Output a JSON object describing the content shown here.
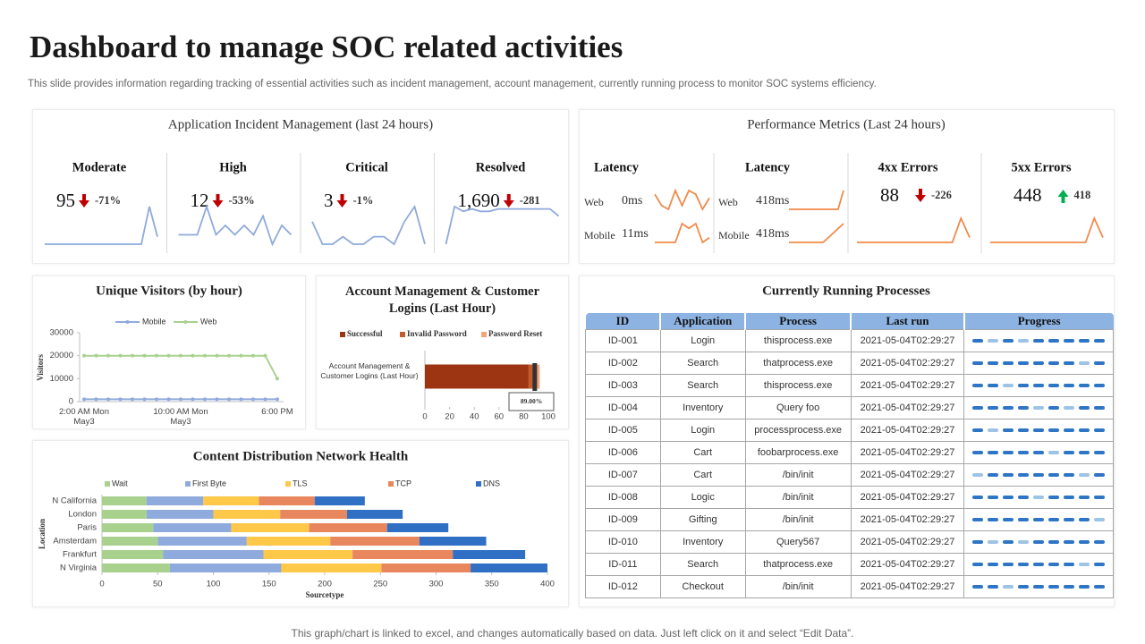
{
  "header": {
    "title": "Dashboard to manage SOC related activities",
    "subtitle": "This slide provides information regarding tracking of essential activities such as incident management, account management, currently running process to monitor SOC systems efficiency."
  },
  "incident_panel": {
    "title": "Application Incident Management (last 24 hours)",
    "kpis": [
      {
        "label": "Moderate",
        "value": 95,
        "change": {
          "value": -71,
          "label": "-71%"
        },
        "trend": "down",
        "sparkline": [
          1,
          1,
          1,
          1,
          1,
          1,
          1,
          1,
          1,
          1,
          1,
          1,
          1,
          6,
          2
        ]
      },
      {
        "label": "High",
        "value": 12,
        "change": {
          "value": -53,
          "label": "-53%"
        },
        "trend": "down",
        "sparkline": [
          2,
          2,
          2,
          5,
          2,
          3,
          2,
          3,
          2,
          4,
          1,
          3,
          2
        ]
      },
      {
        "label": "Critical",
        "value": 3,
        "change": {
          "value": -1,
          "label": "-1%"
        },
        "trend": "down",
        "sparkline": [
          4,
          1,
          1,
          2,
          1,
          1,
          2,
          2,
          1,
          4,
          6,
          1
        ]
      },
      {
        "label": "Resolved",
        "value": {
          "value": 1690,
          "label": "1,690"
        },
        "change": -281,
        "trend": "down",
        "sparkline": [
          0,
          8,
          7,
          7.5,
          7,
          7,
          7.5,
          7.5,
          7.5,
          7.5,
          7.5,
          7.5,
          7.5,
          6
        ]
      }
    ]
  },
  "performance_panel": {
    "title": "Performance Metrics (Last 24 hours)",
    "latency": [
      {
        "label": "Latency",
        "rows": [
          {
            "name": "Web",
            "value": {
              "value": 0,
              "label": "0ms"
            },
            "sparkline": [
              5,
              2,
              1,
              6,
              2,
              6,
              5,
              1,
              4
            ]
          },
          {
            "name": "Mobile",
            "value": {
              "value": 11,
              "label": "11ms"
            },
            "sparkline": [
              1,
              1,
              1,
              1,
              5,
              4,
              5,
              1,
              2
            ]
          }
        ]
      },
      {
        "label": "Latency",
        "rows": [
          {
            "name": "Web",
            "value": {
              "value": 418,
              "label": "418ms"
            },
            "sparkline": [
              1,
              1,
              1,
              1,
              1,
              1,
              1,
              1,
              1,
              1,
              5
            ]
          },
          {
            "name": "Mobile",
            "value": {
              "value": 418,
              "label": "418ms"
            },
            "sparkline": [
              1,
              1,
              1,
              1,
              1,
              1,
              2,
              3,
              4
            ]
          }
        ]
      }
    ],
    "errors": [
      {
        "label": "4xx Errors",
        "value": 88,
        "change": -226,
        "trend": "down",
        "sparkline": [
          1,
          1,
          1,
          1,
          1,
          1,
          1,
          1,
          1,
          1,
          1,
          1,
          6,
          2
        ]
      },
      {
        "label": "5xx Errors",
        "value": 448,
        "change": 418,
        "trend": "up",
        "sparkline": [
          1,
          1,
          1,
          1,
          1,
          1,
          1,
          1,
          1,
          1,
          1,
          1,
          6,
          2
        ]
      }
    ]
  },
  "chart_data": [
    {
      "type": "line",
      "title": "Unique Visitors (by hour)",
      "x": [
        "2:00 AM Mon\nMay3",
        null,
        null,
        null,
        null,
        null,
        null,
        null,
        "10:00 AM Mon\nMay3",
        null,
        null,
        null,
        null,
        null,
        null,
        null,
        "6:00 PM"
      ],
      "series": [
        {
          "name": "Mobile",
          "color": "#8faadc",
          "values": [
            1000,
            1000,
            1000,
            1000,
            1000,
            1000,
            1000,
            1000,
            1000,
            1000,
            1000,
            1000,
            1000,
            1000,
            1000,
            1000,
            1000
          ]
        },
        {
          "name": "Web",
          "color": "#a9d18e",
          "values": [
            20000,
            20000,
            20000,
            20000,
            20000,
            20000,
            20000,
            20000,
            20000,
            20000,
            20000,
            20000,
            20000,
            20000,
            20000,
            20000,
            10000
          ]
        }
      ],
      "ylim": [
        0,
        30000
      ],
      "yticks": [
        0,
        10000,
        20000,
        30000
      ],
      "y_label": "Visitors"
    },
    {
      "type": "stacked_barh",
      "title": "Account Management & Customer Logins (Last Hour)",
      "categories": [
        "Account Management & Customer Logins (Last Hour)"
      ],
      "series": [
        {
          "name": "Successful",
          "color": "#9e3512",
          "values": [
            84
          ]
        },
        {
          "name": "Invalid Password",
          "color": "#c55a2b",
          "values": [
            5
          ]
        },
        {
          "name": "Password Reset",
          "color": "#f4a27a",
          "values": [
            4
          ]
        }
      ],
      "marker": {
        "value": 89,
        "label": "89.00%"
      },
      "xlim": [
        0,
        100
      ],
      "xticks": [
        0,
        20,
        40,
        60,
        80,
        100
      ]
    },
    {
      "type": "stacked_barh",
      "title": "Content Distribution Network Health",
      "categories": [
        "N California",
        "London",
        "Paris",
        "Amsterdam",
        "Frankfurt",
        "N Virginia"
      ],
      "series": [
        {
          "name": "Wait",
          "color": "#a9d18e",
          "values": [
            40,
            40,
            46,
            50,
            55,
            61
          ]
        },
        {
          "name": "First Byte",
          "color": "#8faadc",
          "values": [
            51,
            60,
            70,
            80,
            90,
            100
          ]
        },
        {
          "name": "TLS",
          "color": "#ffc848",
          "values": [
            50,
            60,
            70,
            75,
            80,
            90
          ]
        },
        {
          "name": "TCP",
          "color": "#e8875e",
          "values": [
            50,
            60,
            70,
            80,
            90,
            80
          ]
        },
        {
          "name": "DNS",
          "color": "#2f6fc4",
          "values": [
            45,
            50,
            55,
            60,
            65,
            69
          ]
        }
      ],
      "xlim": [
        0,
        400
      ],
      "xticks": [
        0,
        50,
        100,
        150,
        200,
        250,
        300,
        350,
        400
      ],
      "x_label": "Sourcetype",
      "y_label": "Location"
    }
  ],
  "processes": {
    "title": "Currently Running Processes",
    "columns": [
      "ID",
      "Application",
      "Process",
      "Last run",
      "Progress"
    ],
    "rows": [
      [
        "ID-001",
        "Login",
        "thisprocess.exe",
        "2021-05-04T02:29:27"
      ],
      [
        "ID-002",
        "Search",
        "thatprocess.exe",
        "2021-05-04T02:29:27"
      ],
      [
        "ID-003",
        "Search",
        "thisprocess.exe",
        "2021-05-04T02:29:27"
      ],
      [
        "ID-004",
        "Inventory",
        "Query foo",
        "2021-05-04T02:29:27"
      ],
      [
        "ID-005",
        "Login",
        "processprocess.exe",
        "2021-05-04T02:29:27"
      ],
      [
        "ID-006",
        "Cart",
        "foobarprocess.exe",
        "2021-05-04T02:29:27"
      ],
      [
        "ID-007",
        "Cart",
        "/bin/init",
        "2021-05-04T02:29:27"
      ],
      [
        "ID-008",
        "Logic",
        "/bin/init",
        "2021-05-04T02:29:27"
      ],
      [
        "ID-009",
        "Gifting",
        "/bin/init",
        "2021-05-04T02:29:27"
      ],
      [
        "ID-010",
        "Inventory",
        "Query567",
        "2021-05-04T02:29:27"
      ],
      [
        "ID-011",
        "Search",
        "thatprocess.exe",
        "2021-05-04T02:29:27"
      ],
      [
        "ID-012",
        "Checkout",
        "/bin/init",
        "2021-05-04T02:29:27"
      ]
    ]
  },
  "footer": "This graph/chart is linked to excel, and changes automatically based on data. Just left click on it and select “Edit Data”."
}
